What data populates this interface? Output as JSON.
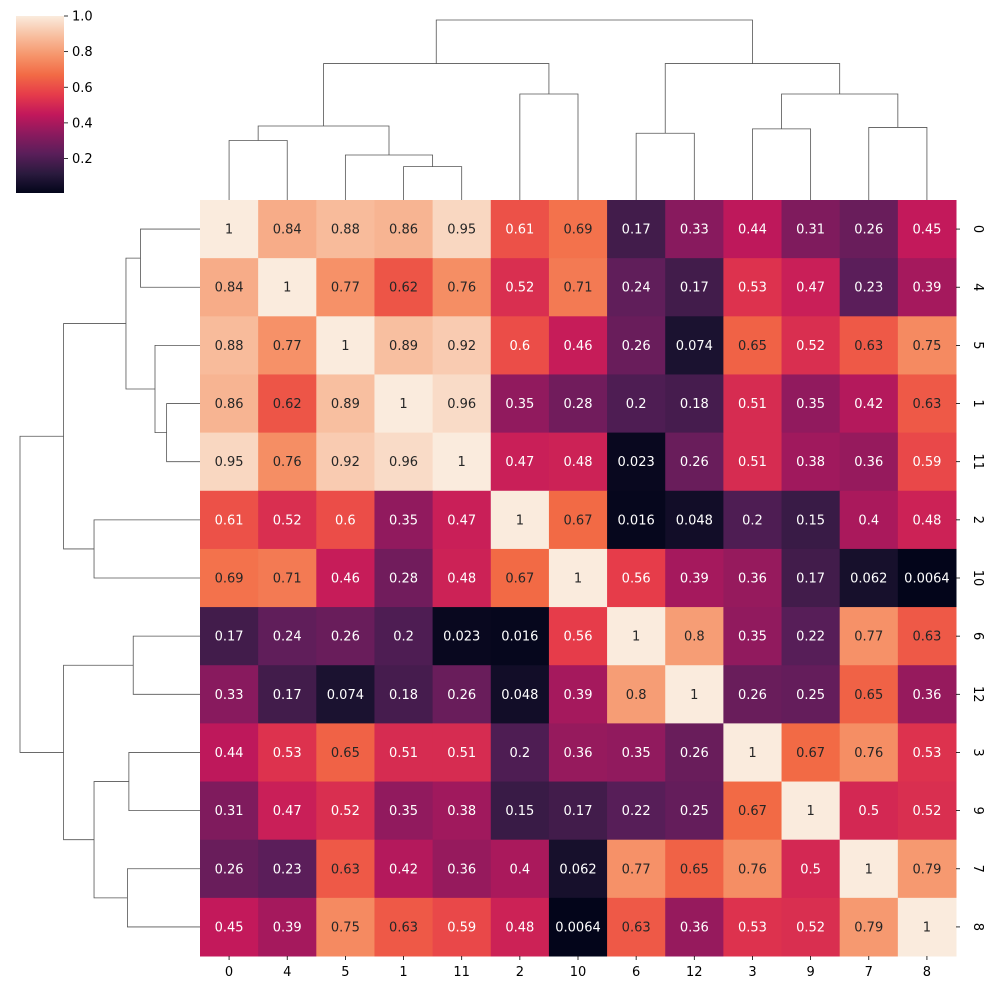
{
  "chart_data": {
    "type": "heatmap",
    "title": "",
    "xlabel": "",
    "ylabel": "",
    "row_labels": [
      "0",
      "4",
      "5",
      "1",
      "11",
      "2",
      "10",
      "6",
      "12",
      "3",
      "9",
      "7",
      "8"
    ],
    "col_labels": [
      "0",
      "4",
      "5",
      "1",
      "11",
      "2",
      "10",
      "6",
      "12",
      "3",
      "9",
      "7",
      "8"
    ],
    "values": [
      [
        1,
        0.84,
        0.88,
        0.86,
        0.95,
        0.61,
        0.69,
        0.17,
        0.33,
        0.44,
        0.31,
        0.26,
        0.45
      ],
      [
        0.84,
        1,
        0.77,
        0.62,
        0.76,
        0.52,
        0.71,
        0.24,
        0.17,
        0.53,
        0.47,
        0.23,
        0.39
      ],
      [
        0.88,
        0.77,
        1,
        0.89,
        0.92,
        0.6,
        0.46,
        0.26,
        0.074,
        0.65,
        0.52,
        0.63,
        0.75
      ],
      [
        0.86,
        0.62,
        0.89,
        1,
        0.96,
        0.35,
        0.28,
        0.2,
        0.18,
        0.51,
        0.35,
        0.42,
        0.63
      ],
      [
        0.95,
        0.76,
        0.92,
        0.96,
        1,
        0.47,
        0.48,
        0.023,
        0.26,
        0.51,
        0.38,
        0.36,
        0.59
      ],
      [
        0.61,
        0.52,
        0.6,
        0.35,
        0.47,
        1,
        0.67,
        0.016,
        0.048,
        0.2,
        0.15,
        0.4,
        0.48
      ],
      [
        0.69,
        0.71,
        0.46,
        0.28,
        0.48,
        0.67,
        1,
        0.56,
        0.39,
        0.36,
        0.17,
        0.062,
        0.0064
      ],
      [
        0.17,
        0.24,
        0.26,
        0.2,
        0.023,
        0.016,
        0.56,
        1,
        0.8,
        0.35,
        0.22,
        0.77,
        0.63
      ],
      [
        0.33,
        0.17,
        0.074,
        0.18,
        0.26,
        0.048,
        0.39,
        0.8,
        1,
        0.26,
        0.25,
        0.65,
        0.36
      ],
      [
        0.44,
        0.53,
        0.65,
        0.51,
        0.51,
        0.2,
        0.36,
        0.35,
        0.26,
        1,
        0.67,
        0.76,
        0.53
      ],
      [
        0.31,
        0.47,
        0.52,
        0.35,
        0.38,
        0.15,
        0.17,
        0.22,
        0.25,
        0.67,
        1,
        0.5,
        0.52
      ],
      [
        0.26,
        0.23,
        0.63,
        0.42,
        0.36,
        0.4,
        0.062,
        0.77,
        0.65,
        0.76,
        0.5,
        1,
        0.79
      ],
      [
        0.45,
        0.39,
        0.75,
        0.63,
        0.59,
        0.48,
        0.0064,
        0.63,
        0.36,
        0.53,
        0.52,
        0.79,
        1
      ]
    ],
    "colorbar": {
      "range": [
        0.0064,
        1.0
      ],
      "ticks": [
        "0.2",
        "0.4",
        "0.6",
        "0.8",
        "1.0"
      ],
      "colormap": "rocket",
      "stops": [
        "#03051a",
        "#2b1a3e",
        "#5a1e5a",
        "#8b1a5e",
        "#c2185b",
        "#e63b4a",
        "#f26a45",
        "#f6956b",
        "#f8bfa0",
        "#faebdd"
      ],
      "placement": "top-left"
    },
    "dendrogram_order": [
      "0",
      "4",
      "5",
      "1",
      "11",
      "2",
      "10",
      "6",
      "12",
      "3",
      "9",
      "7",
      "8"
    ]
  }
}
